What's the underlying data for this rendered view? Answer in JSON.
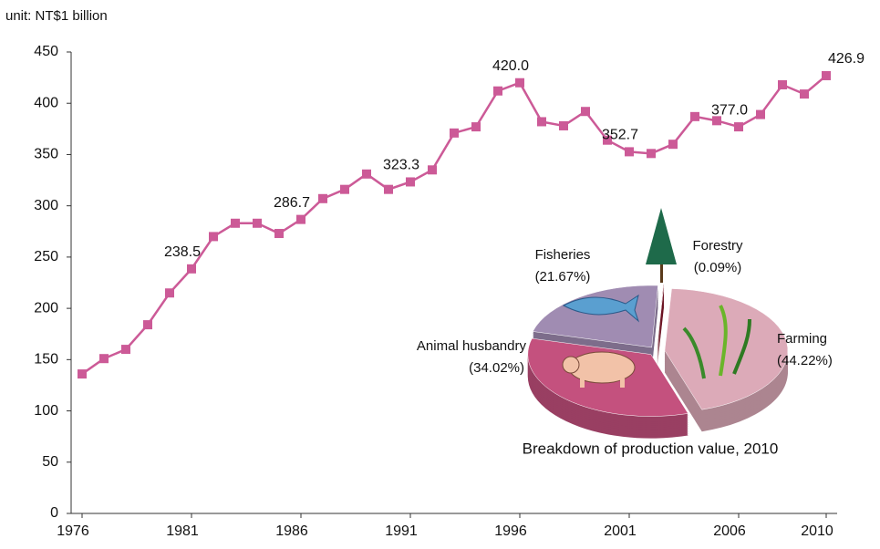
{
  "chart_data": [
    {
      "type": "line",
      "y_label": "unit: NT$1 billion",
      "x": [
        1976,
        1977,
        1978,
        1979,
        1980,
        1981,
        1982,
        1983,
        1984,
        1985,
        1986,
        1987,
        1988,
        1989,
        1990,
        1991,
        1992,
        1993,
        1994,
        1995,
        1996,
        1997,
        1998,
        1999,
        2000,
        2001,
        2002,
        2003,
        2004,
        2005,
        2006,
        2007,
        2008,
        2009,
        2010
      ],
      "series": [
        {
          "color": "#cc5a97",
          "values": [
            136,
            151,
            160,
            184,
            215,
            238.5,
            270,
            283,
            283,
            273,
            286.7,
            307,
            316,
            331,
            316,
            323.3,
            335,
            371,
            377,
            412,
            420.0,
            382,
            378,
            392,
            364,
            352.7,
            351,
            360,
            387,
            383,
            377.0,
            389,
            418,
            409,
            426.9
          ],
          "value_labels": [
            null,
            null,
            null,
            null,
            null,
            "238.5",
            null,
            null,
            null,
            null,
            "286.7",
            null,
            null,
            null,
            null,
            "323.3",
            null,
            null,
            null,
            null,
            "420.0",
            null,
            null,
            null,
            null,
            "352.7",
            null,
            null,
            null,
            null,
            "377.0",
            null,
            null,
            null,
            "426.9"
          ]
        }
      ],
      "xlim": [
        1975.5,
        2010.5
      ],
      "xticks": [
        1976,
        1981,
        1986,
        1991,
        1996,
        2001,
        2006,
        2010
      ],
      "ylim": [
        0,
        450
      ],
      "yticks": [
        0,
        50,
        100,
        150,
        200,
        250,
        300,
        350,
        400,
        450
      ]
    },
    {
      "type": "pie",
      "title": "Breakdown of production value, 2010",
      "categories": [
        "Forestry",
        "Farming",
        "Animal husbandry",
        "Fisheries"
      ],
      "values": [
        0.09,
        44.22,
        34.02,
        21.67
      ],
      "value_labels": [
        "(0.09%)",
        "(44.22%)",
        "(34.02%)",
        "(21.67%)"
      ],
      "colors": [
        "#8b1a2e",
        "#dcaab8",
        "#c4517e",
        "#a08cb2"
      ]
    }
  ]
}
